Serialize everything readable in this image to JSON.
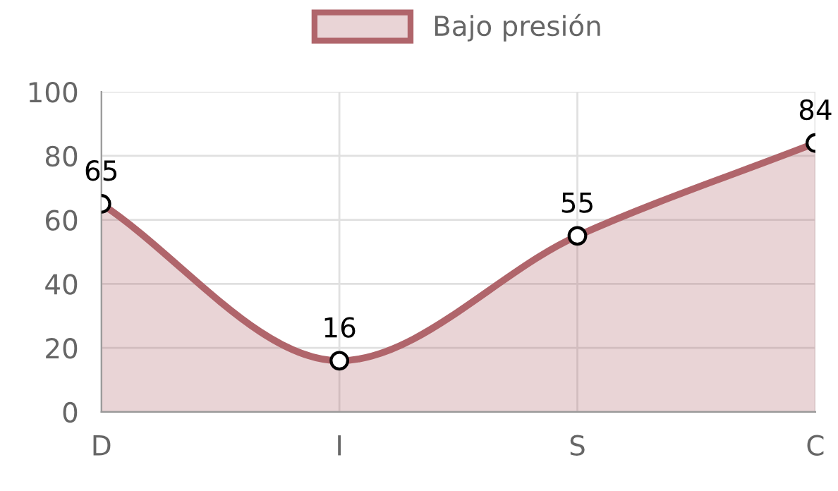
{
  "chart_data": {
    "type": "area",
    "categories": [
      "D",
      "I",
      "S",
      "C"
    ],
    "series": [
      {
        "name": "Bajo presión",
        "color": "#b0656b",
        "values": [
          65,
          16,
          55,
          84
        ]
      }
    ],
    "ylim": [
      0,
      100
    ],
    "yticks": [
      0,
      20,
      40,
      60,
      80,
      100
    ],
    "grid": true,
    "legend": "top",
    "marker": "circle",
    "line_style": "solid",
    "data_labels": true
  }
}
